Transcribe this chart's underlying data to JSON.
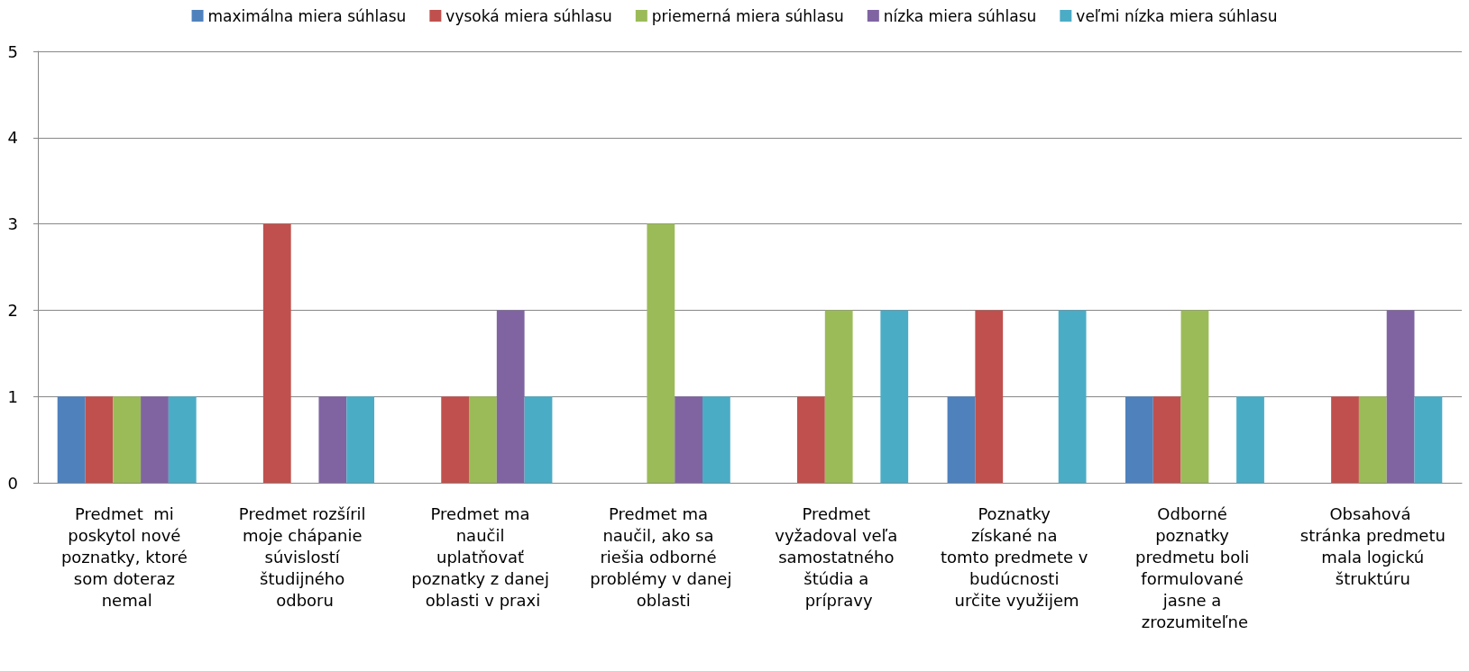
{
  "chart_data": {
    "type": "bar",
    "categories": [
      "Predmet  mi poskytol nové poznatky, ktoré som doteraz nemal",
      "Predmet rozšíril moje chápanie súvislostí študijného odboru",
      "Predmet ma naučil uplatňovať poznatky z danej oblasti v praxi",
      "Predmet ma naučil, ako sa riešia odborné problémy v danej oblasti",
      "Predmet vyžadoval veľa samostatného štúdia a prípravy",
      "Poznatky získané na tomto predmete v budúcnosti určite využijem",
      "Odborné poznatky predmetu boli formulované jasne a zrozumiteľne",
      "Obsahová stránka predmetu mala logickú štruktúru"
    ],
    "series": [
      {
        "name": "maximálna miera súhlasu",
        "color": "#4f81bd",
        "values": [
          1,
          0,
          0,
          0,
          0,
          1,
          1,
          0
        ]
      },
      {
        "name": "vysoká miera súhlasu",
        "color": "#c0504d",
        "values": [
          1,
          3,
          1,
          0,
          1,
          2,
          1,
          1
        ]
      },
      {
        "name": "priemerná miera súhlasu",
        "color": "#9bbb59",
        "values": [
          1,
          0,
          1,
          3,
          2,
          0,
          2,
          1
        ]
      },
      {
        "name": "nízka miera súhlasu",
        "color": "#8064a2",
        "values": [
          1,
          1,
          2,
          1,
          0,
          0,
          0,
          2
        ]
      },
      {
        "name": "veľmi nízka miera súhlasu",
        "color": "#4bacc6",
        "values": [
          1,
          1,
          1,
          1,
          2,
          2,
          1,
          1
        ]
      }
    ],
    "ylim": [
      0,
      5
    ],
    "yticks": [
      0,
      1,
      2,
      3,
      4,
      5
    ],
    "grid": "y",
    "legend": "top"
  }
}
